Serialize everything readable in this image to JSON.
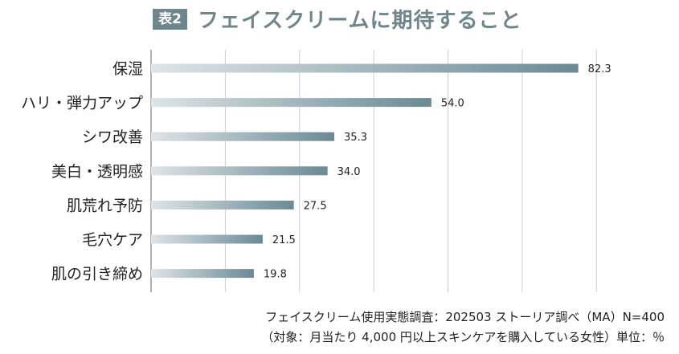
{
  "title": {
    "badge": "表2",
    "text": "フェイスクリームに期待すること"
  },
  "chart_data": {
    "type": "bar",
    "orientation": "horizontal",
    "title": "フェイスクリームに期待すること",
    "categories": [
      "保湿",
      "ハリ・弾力アップ",
      "シワ改善",
      "美白・透明感",
      "肌荒れ予防",
      "毛穴ケア",
      "肌の引き締め"
    ],
    "values": [
      82.3,
      54.0,
      35.3,
      34.0,
      27.5,
      21.5,
      19.8
    ],
    "value_labels": [
      "82.3",
      "54.0",
      "35.3",
      "34.0",
      "27.5",
      "21.5",
      "19.8"
    ],
    "xlim": [
      0,
      100
    ],
    "grid": true,
    "unit": "%",
    "bar_color_start": "#dfe4e8",
    "bar_color_end": "#6a8a95",
    "grid_color": "#c9cfd3"
  },
  "source": {
    "line1": "フェイスクリーム使用実態調査：202503 ストーリア調べ（MA）N=400",
    "line2": "（対象：月当たり 4,000 円以上スキンケアを購入している女性）単位：％"
  }
}
